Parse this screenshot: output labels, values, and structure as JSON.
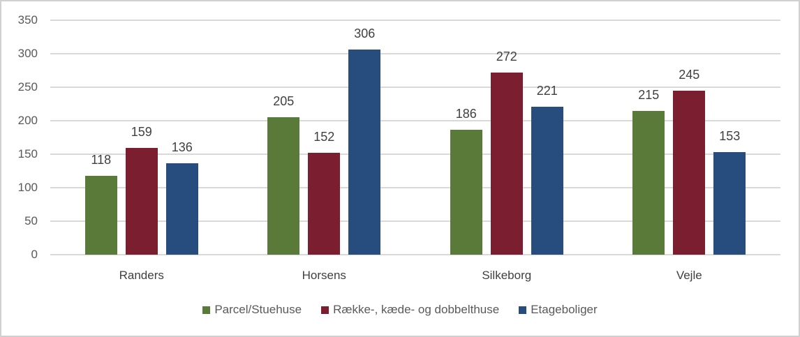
{
  "chart_data": {
    "type": "bar",
    "title": "",
    "xlabel": "",
    "ylabel": "",
    "ylim": [
      0,
      350
    ],
    "yticks": [
      0,
      50,
      100,
      150,
      200,
      250,
      300,
      350
    ],
    "grid": true,
    "legend_position": "bottom",
    "categories": [
      "Randers",
      "Horsens",
      "Silkeborg",
      "Vejle"
    ],
    "series": [
      {
        "name": "Parcel/Stuehuse",
        "color": "#5a7a3a",
        "values": [
          118,
          205,
          186,
          215
        ]
      },
      {
        "name": "Række-, kæde- og dobbelthuse",
        "color": "#7a1e30",
        "values": [
          159,
          152,
          272,
          245
        ]
      },
      {
        "name": "Etageboliger",
        "color": "#264d7e",
        "values": [
          136,
          306,
          221,
          153
        ]
      }
    ]
  }
}
